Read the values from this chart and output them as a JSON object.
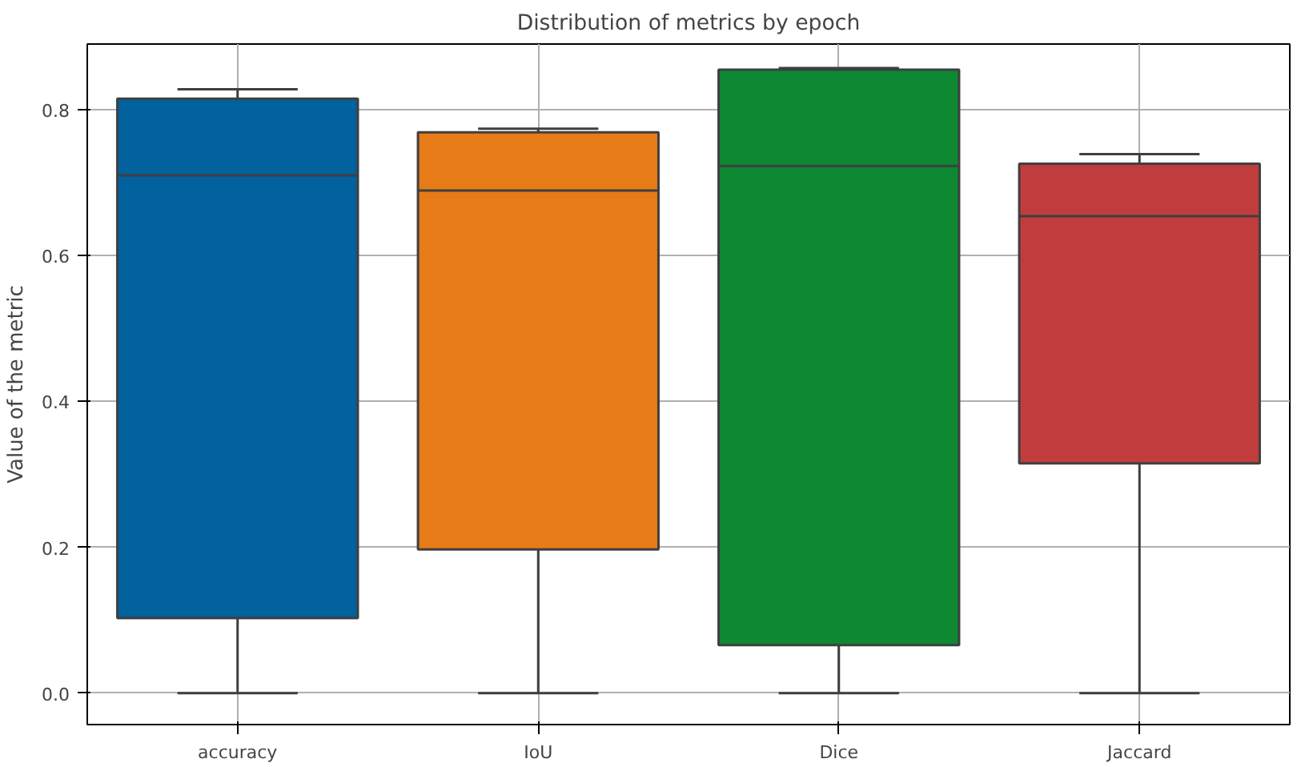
{
  "chart_data": {
    "type": "box",
    "title": "Distribution of metrics by epoch",
    "ylabel": "Value of the metric",
    "categories": [
      "accuracy",
      "IoU",
      "Dice",
      "Jaccard"
    ],
    "colors": [
      "#01629d",
      "#e67b17",
      "#0e8832",
      "#c13c3c"
    ],
    "boxes": [
      {
        "low": 0.0,
        "q1": 0.103,
        "median": 0.71,
        "q3": 0.815,
        "high": 0.828
      },
      {
        "low": 0.0,
        "q1": 0.197,
        "median": 0.689,
        "q3": 0.769,
        "high": 0.774
      },
      {
        "low": 0.0,
        "q1": 0.066,
        "median": 0.723,
        "q3": 0.855,
        "high": 0.857
      },
      {
        "low": 0.0,
        "q1": 0.315,
        "median": 0.654,
        "q3": 0.726,
        "high": 0.739
      }
    ],
    "ylim": [
      -0.043,
      0.89
    ],
    "yticks": [
      {
        "value": 0,
        "label": "0.0"
      },
      {
        "value": 0.2,
        "label": "0.2"
      },
      {
        "value": 0.4,
        "label": "0.4"
      },
      {
        "value": 0.6,
        "label": "0.6"
      },
      {
        "value": 0.8,
        "label": "0.8"
      }
    ],
    "grid": true
  }
}
